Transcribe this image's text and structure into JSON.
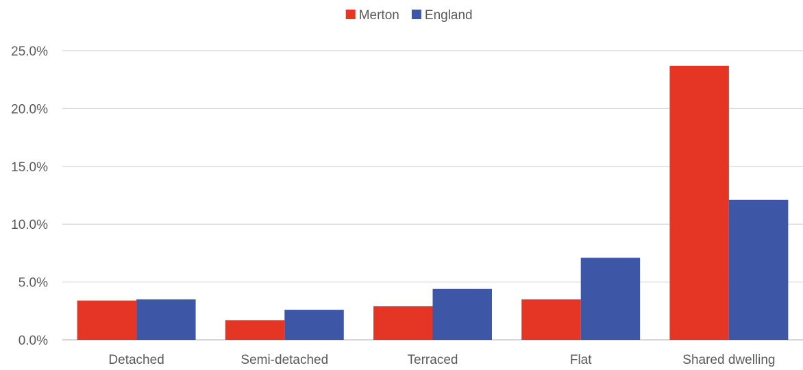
{
  "chart_data": {
    "type": "bar",
    "categories": [
      "Detached",
      "Semi-detached",
      "Terraced",
      "Flat",
      "Shared dwelling"
    ],
    "series": [
      {
        "name": "Merton",
        "color": "#E53525",
        "values": [
          3.4,
          1.7,
          2.9,
          3.5,
          23.7
        ]
      },
      {
        "name": "England",
        "color": "#3D56A6",
        "values": [
          3.5,
          2.6,
          4.4,
          7.1,
          12.1
        ]
      }
    ],
    "y_ticks": [
      "0.0%",
      "5.0%",
      "10.0%",
      "15.0%",
      "20.0%",
      "25.0%"
    ],
    "ylim": [
      0,
      25
    ],
    "y_unit": "%",
    "title": "",
    "xlabel": "",
    "ylabel": "",
    "grid": true,
    "legend_position": "top-center",
    "colors": {
      "grid": "#D9D9D9",
      "axis": "#BFBFBF",
      "text": "#595959"
    }
  }
}
